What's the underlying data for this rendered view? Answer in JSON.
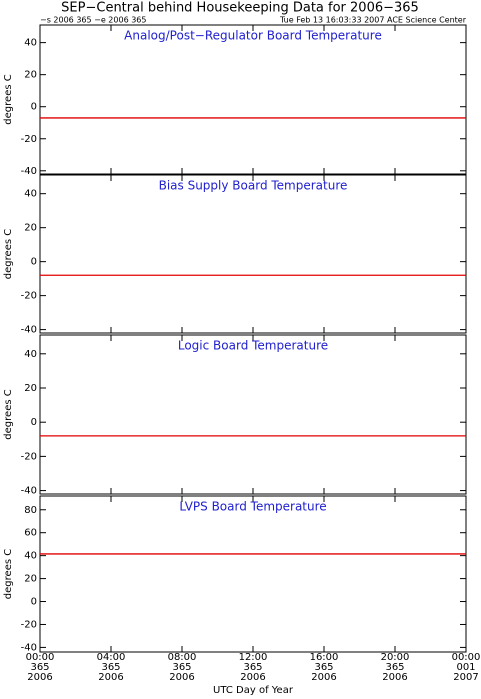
{
  "title": "SEP−Central behind Housekeeping Data for 2006−365",
  "subtitle_left": "−s 2006 365  −e 2006 365",
  "subtitle_right": "Tue Feb 13 16:03:33 2007 ACE Science Center",
  "x_label": "UTC Day of Year",
  "chart_data": [
    {
      "type": "line",
      "title": "Analog/Post−Regulator Board Temperature",
      "y_label": "degrees C",
      "x": [
        0,
        24
      ],
      "series": [
        {
          "color": "#e00000",
          "values": [
            -7,
            -7
          ]
        }
      ],
      "xlim": [
        0,
        24
      ],
      "ylim": [
        -42,
        51
      ],
      "yticks": [
        -40,
        -20,
        0,
        20,
        40
      ]
    },
    {
      "type": "line",
      "title": "Bias Supply Board Temperature",
      "y_label": "degrees C",
      "x": [
        0,
        24
      ],
      "series": [
        {
          "color": "#e00000",
          "values": [
            -8,
            -8
          ]
        }
      ],
      "xlim": [
        0,
        24
      ],
      "ylim": [
        -42,
        51
      ],
      "yticks": [
        -40,
        -20,
        0,
        20,
        40
      ]
    },
    {
      "type": "line",
      "title": "Logic Board Temperature",
      "y_label": "degrees C",
      "x": [
        0,
        24
      ],
      "series": [
        {
          "color": "#e00000",
          "values": [
            -8,
            -8
          ]
        }
      ],
      "xlim": [
        0,
        24
      ],
      "ylim": [
        -42,
        51
      ],
      "yticks": [
        -40,
        -20,
        0,
        20,
        40
      ]
    },
    {
      "type": "line",
      "title": "LVPS Board Temperature",
      "y_label": "degrees C",
      "x": [
        0,
        24
      ],
      "series": [
        {
          "color": "#e00000",
          "values": [
            41.5,
            41.5
          ]
        }
      ],
      "xlim": [
        0,
        24
      ],
      "ylim": [
        -44,
        92
      ],
      "yticks": [
        -40,
        -20,
        0,
        20,
        40,
        60,
        80
      ],
      "xticks": [
        {
          "value": 0,
          "label": "00:00\n365\n2006"
        },
        {
          "value": 4,
          "label": "04:00\n365\n2006"
        },
        {
          "value": 8,
          "label": "08:00\n365\n2006"
        },
        {
          "value": 12,
          "label": "12:00\n365\n2006"
        },
        {
          "value": 16,
          "label": "16:00\n365\n2006"
        },
        {
          "value": 20,
          "label": "20:00\n365\n2006"
        },
        {
          "value": 24,
          "label": "00:00\n001\n2007"
        }
      ]
    }
  ]
}
